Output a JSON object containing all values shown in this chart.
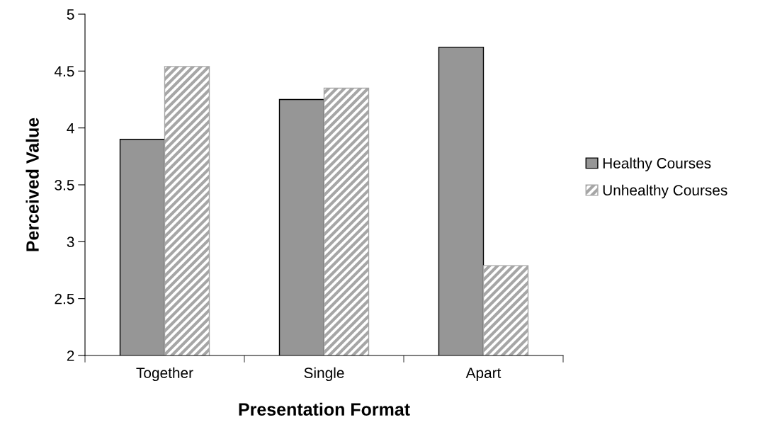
{
  "chart_data": {
    "type": "bar",
    "xlabel": "Presentation Format",
    "ylabel": "Perceived Value",
    "categories": [
      "Together",
      "Single",
      "Apart"
    ],
    "series": [
      {
        "name": "Healthy Courses",
        "color": "#969696",
        "values": [
          3.9,
          4.25,
          4.71
        ]
      },
      {
        "name": "Unhealthy Courses",
        "color": "#a6a6a6",
        "values": [
          4.54,
          4.35,
          2.79
        ]
      }
    ],
    "ylim": [
      2,
      5
    ],
    "yticks": [
      2,
      2.5,
      3,
      3.5,
      4,
      4.5,
      5
    ],
    "grid": false,
    "legend": "right"
  }
}
